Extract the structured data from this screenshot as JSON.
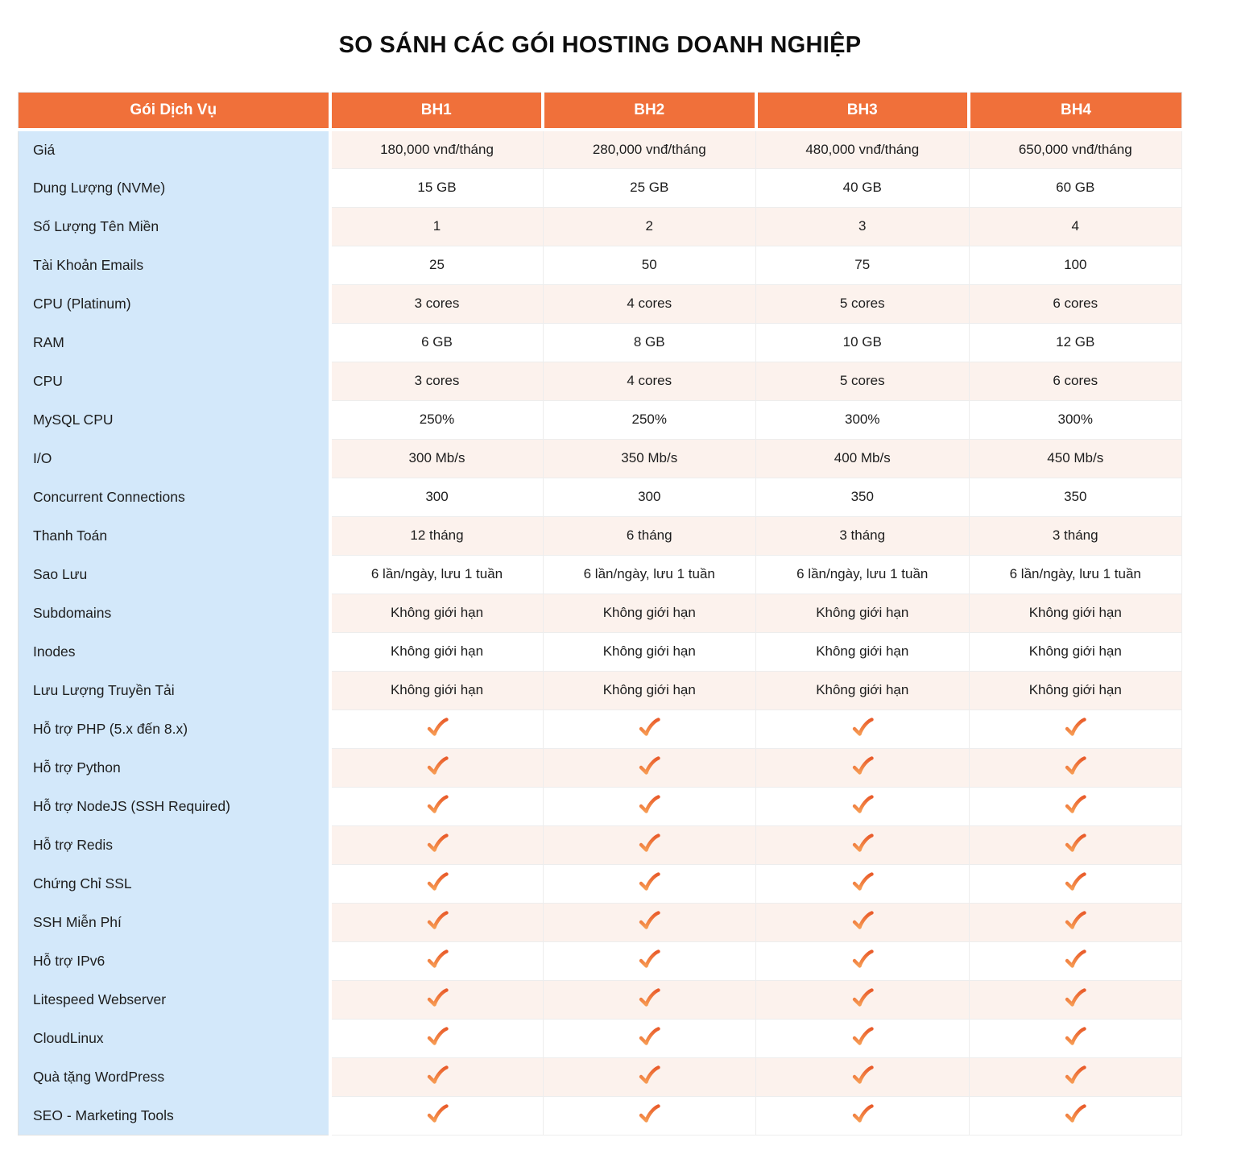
{
  "page": {
    "title": "SO SÁNH CÁC GÓI HOSTING DOANH NGHIỆP"
  },
  "colors": {
    "accent_orange": "#f0703a",
    "header_text": "#ffffff",
    "feature_column_bg": "#d3e8fa",
    "stripe_row_bg": "#fcf2ed",
    "plain_row_bg": "#ffffff",
    "check_gradient_top": "#e95c2b",
    "check_gradient_bottom": "#f69a52",
    "grid_line": "#ededed",
    "title_color": "#0e0e0e"
  },
  "icons": {
    "check": "check-icon"
  },
  "chart_data": {
    "type": "table",
    "title": "SO SÁNH CÁC GÓI HOSTING DOANH NGHIỆP",
    "columns": [
      "Gói Dịch Vụ",
      "BH1",
      "BH2",
      "BH3",
      "BH4"
    ],
    "check_symbol": "✓",
    "rows": [
      {
        "label": "Giá",
        "kind": "text",
        "values": [
          "180,000 vnđ/tháng",
          "280,000 vnđ/tháng",
          "480,000 vnđ/tháng",
          "650,000 vnđ/tháng"
        ]
      },
      {
        "label": "Dung Lượng (NVMe)",
        "kind": "text",
        "values": [
          "15 GB",
          "25 GB",
          "40 GB",
          "60 GB"
        ]
      },
      {
        "label": "Số Lượng Tên Miền",
        "kind": "text",
        "values": [
          "1",
          "2",
          "3",
          "4"
        ]
      },
      {
        "label": "Tài Khoản Emails",
        "kind": "text",
        "values": [
          "25",
          "50",
          "75",
          "100"
        ]
      },
      {
        "label": "CPU (Platinum)",
        "kind": "text",
        "values": [
          "3 cores",
          "4 cores",
          "5 cores",
          "6 cores"
        ]
      },
      {
        "label": "RAM",
        "kind": "text",
        "values": [
          "6 GB",
          "8 GB",
          "10 GB",
          "12 GB"
        ]
      },
      {
        "label": "CPU",
        "kind": "text",
        "values": [
          "3 cores",
          "4 cores",
          "5 cores",
          "6 cores"
        ]
      },
      {
        "label": "MySQL CPU",
        "kind": "text",
        "values": [
          "250%",
          "250%",
          "300%",
          "300%"
        ]
      },
      {
        "label": "I/O",
        "kind": "text",
        "values": [
          "300 Mb/s",
          "350 Mb/s",
          "400 Mb/s",
          "450 Mb/s"
        ]
      },
      {
        "label": "Concurrent Connections",
        "kind": "text",
        "values": [
          "300",
          "300",
          "350",
          "350"
        ]
      },
      {
        "label": "Thanh Toán",
        "kind": "text",
        "values": [
          "12 tháng",
          "6 tháng",
          "3 tháng",
          "3 tháng"
        ]
      },
      {
        "label": "Sao Lưu",
        "kind": "text",
        "values": [
          "6 lần/ngày, lưu 1 tuần",
          "6 lần/ngày, lưu 1 tuần",
          "6 lần/ngày, lưu 1 tuần",
          "6 lần/ngày, lưu 1 tuần"
        ]
      },
      {
        "label": "Subdomains",
        "kind": "text",
        "values": [
          "Không giới hạn",
          "Không giới hạn",
          "Không giới hạn",
          "Không giới hạn"
        ]
      },
      {
        "label": "Inodes",
        "kind": "text",
        "values": [
          "Không giới hạn",
          "Không giới hạn",
          "Không giới hạn",
          "Không giới hạn"
        ]
      },
      {
        "label": "Lưu Lượng Truyền Tải",
        "kind": "text",
        "values": [
          "Không giới hạn",
          "Không giới hạn",
          "Không giới hạn",
          "Không giới hạn"
        ]
      },
      {
        "label": "Hỗ trợ PHP (5.x đến 8.x)",
        "kind": "check",
        "values": [
          true,
          true,
          true,
          true
        ]
      },
      {
        "label": "Hỗ trợ Python",
        "kind": "check",
        "values": [
          true,
          true,
          true,
          true
        ]
      },
      {
        "label": "Hỗ trợ NodeJS (SSH Required)",
        "kind": "check",
        "values": [
          true,
          true,
          true,
          true
        ]
      },
      {
        "label": "Hỗ trợ Redis",
        "kind": "check",
        "values": [
          true,
          true,
          true,
          true
        ]
      },
      {
        "label": "Chứng Chỉ SSL",
        "kind": "check",
        "values": [
          true,
          true,
          true,
          true
        ]
      },
      {
        "label": "SSH Miễn Phí",
        "kind": "check",
        "values": [
          true,
          true,
          true,
          true
        ]
      },
      {
        "label": "Hỗ trợ IPv6",
        "kind": "check",
        "values": [
          true,
          true,
          true,
          true
        ]
      },
      {
        "label": "Litespeed Webserver",
        "kind": "check",
        "values": [
          true,
          true,
          true,
          true
        ]
      },
      {
        "label": "CloudLinux",
        "kind": "check",
        "values": [
          true,
          true,
          true,
          true
        ]
      },
      {
        "label": "Quà tặng WordPress",
        "kind": "check",
        "values": [
          true,
          true,
          true,
          true
        ]
      },
      {
        "label": "SEO - Marketing Tools",
        "kind": "check",
        "values": [
          true,
          true,
          true,
          true
        ]
      }
    ]
  }
}
